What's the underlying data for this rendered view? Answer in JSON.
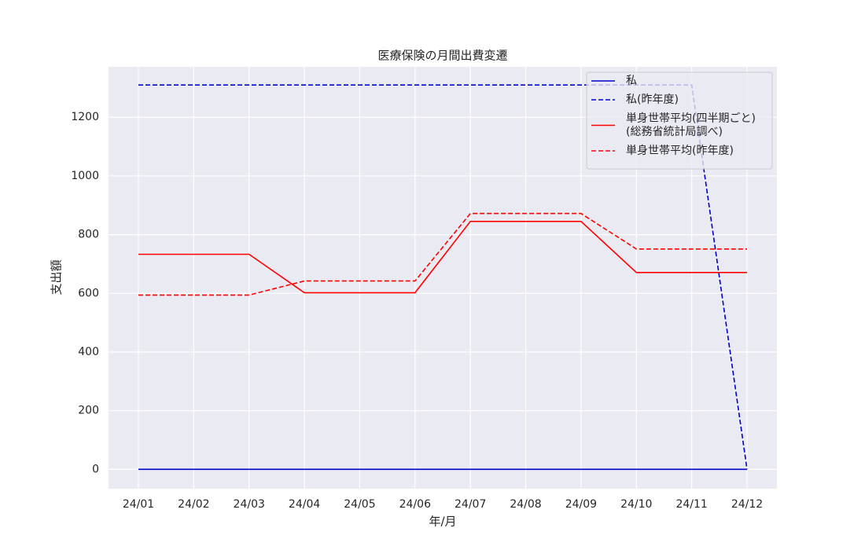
{
  "chart_data": {
    "type": "line",
    "title": "医療保険の月間出費変遷",
    "xlabel": "年/月",
    "ylabel": "支出額",
    "categories": [
      "24/01",
      "24/02",
      "24/03",
      "24/04",
      "24/05",
      "24/06",
      "24/07",
      "24/08",
      "24/09",
      "24/10",
      "24/11",
      "24/12"
    ],
    "series": [
      {
        "name": "私",
        "color": "#0000cc",
        "dash": false,
        "values": [
          0,
          0,
          0,
          0,
          0,
          0,
          0,
          0,
          0,
          0,
          0,
          0
        ]
      },
      {
        "name": "私(昨年度)",
        "color": "#0000cc",
        "dash": true,
        "values": [
          1310,
          1310,
          1310,
          1310,
          1310,
          1310,
          1310,
          1310,
          1310,
          1310,
          1310,
          0
        ]
      },
      {
        "name": "単身世帯平均(四半期ごと)\n(総務省統計局調べ)",
        "color": "#ff0000",
        "dash": false,
        "values": [
          733,
          733,
          733,
          602,
          602,
          602,
          845,
          845,
          845,
          671,
          671,
          671
        ]
      },
      {
        "name": "単身世帯平均(昨年度)",
        "color": "#ff0000",
        "dash": true,
        "values": [
          594,
          594,
          594,
          642,
          642,
          642,
          872,
          872,
          872,
          751,
          751,
          751
        ]
      }
    ],
    "ylim": [
      -66,
      1372
    ],
    "yticks": [
      0,
      200,
      400,
      600,
      800,
      1000,
      1200
    ],
    "grid": true,
    "legend": "upper right"
  }
}
